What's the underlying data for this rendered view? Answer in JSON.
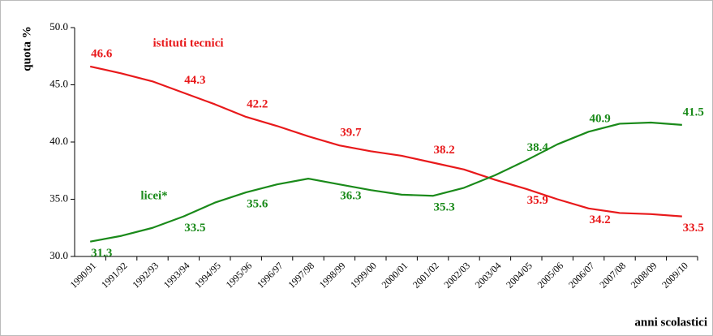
{
  "chart_data": {
    "type": "line",
    "xlabel": "anni scolastici",
    "ylabel": "quota %",
    "categories": [
      "1990/91",
      "1991/92",
      "1992/93",
      "1993/94",
      "1994/95",
      "1995/96",
      "1996/97",
      "1997/98",
      "1998/99",
      "1999/00",
      "2000/01",
      "2001/02",
      "2002/03",
      "2003/04",
      "2004/05",
      "2005/06",
      "2006/07",
      "2007/08",
      "2008/09",
      "2009/10"
    ],
    "series": [
      {
        "name": "istituti tecnici",
        "color": "#e8191b",
        "values": [
          46.6,
          46.0,
          45.3,
          44.3,
          43.3,
          42.2,
          41.4,
          40.5,
          39.7,
          39.2,
          38.8,
          38.2,
          37.6,
          36.7,
          35.9,
          35.0,
          34.2,
          33.8,
          33.7,
          33.5
        ],
        "value_labels": [
          "46.6",
          null,
          null,
          "44.3",
          null,
          "42.2",
          null,
          null,
          "39.7",
          null,
          null,
          "38.2",
          null,
          null,
          "35.9",
          null,
          "34.2",
          null,
          null,
          "33.5"
        ]
      },
      {
        "name": "licei*",
        "color": "#1a8a1a",
        "values": [
          31.3,
          31.8,
          32.5,
          33.5,
          34.7,
          35.6,
          36.3,
          36.8,
          36.3,
          35.8,
          35.4,
          35.3,
          36.0,
          37.1,
          38.4,
          39.8,
          40.9,
          41.6,
          41.7,
          41.5
        ],
        "value_labels": [
          "31.3",
          null,
          null,
          "33.5",
          null,
          "35.6",
          null,
          null,
          "36.3",
          null,
          null,
          "35.3",
          null,
          null,
          "38.4",
          null,
          "40.9",
          null,
          null,
          "41.5"
        ]
      }
    ],
    "ylim": [
      30,
      50
    ],
    "yticks": [
      {
        "value": 30,
        "label": "30.0"
      },
      {
        "value": 35,
        "label": "35.0"
      },
      {
        "value": 40,
        "label": "40.0"
      },
      {
        "value": 45,
        "label": "45.0"
      },
      {
        "value": 50,
        "label": "50.0"
      }
    ]
  }
}
